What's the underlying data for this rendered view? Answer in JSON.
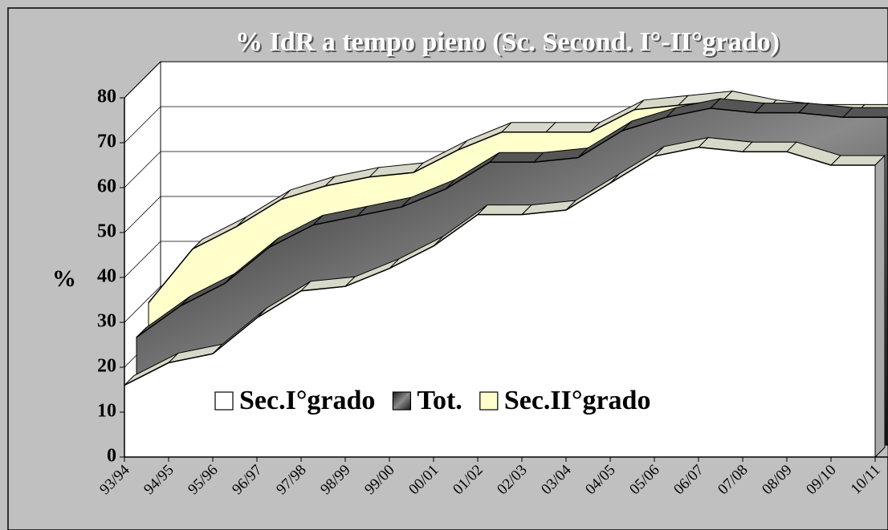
{
  "chart_data": {
    "type": "area3d",
    "title": "% IdR a tempo pieno (Sc. Second. I°-II°grado)",
    "y_label": "%",
    "categories": [
      "93/94",
      "94/95",
      "95/96",
      "96/97",
      "97/98",
      "98/99",
      "99/00",
      "00/01",
      "01/02",
      "02/03",
      "03/04",
      "04/05",
      "05/06",
      "06/07",
      "07/08",
      "08/09",
      "09/10",
      "10/11"
    ],
    "series": [
      {
        "name": "Sec.I°grado",
        "color": "#ffffff",
        "values": [
          16,
          21,
          23,
          31,
          37,
          38,
          42,
          47,
          54,
          54,
          55,
          61,
          67,
          69,
          68,
          68,
          65,
          65
        ]
      },
      {
        "name": "Tot.",
        "color": "#404040",
        "values": [
          24,
          31,
          36,
          44,
          49,
          51,
          53,
          57,
          63,
          63,
          64,
          70,
          73,
          75,
          74,
          74,
          73,
          73
        ]
      },
      {
        "name": "Sec.II°grado",
        "color": "#ffffcc",
        "values": [
          29,
          41,
          46,
          52,
          55,
          57,
          58,
          63,
          67,
          67,
          67,
          72,
          73,
          74,
          72,
          71,
          71,
          71
        ]
      }
    ],
    "ylim": [
      0,
      80
    ],
    "yticks": [
      0,
      10,
      20,
      30,
      40,
      50,
      60,
      70,
      80
    ],
    "grid": true,
    "legend": "bottom"
  }
}
